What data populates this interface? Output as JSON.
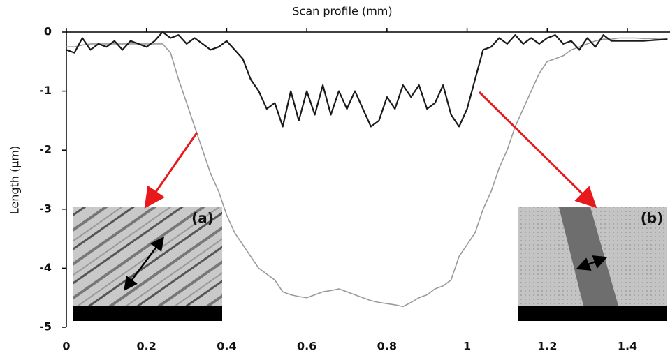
{
  "chart_data": {
    "type": "line",
    "x_label": "Scan profile  (mm)",
    "y_label": "Length  (µm)",
    "x": [
      0,
      0.02,
      0.04,
      0.06,
      0.08,
      0.1,
      0.12,
      0.14,
      0.16,
      0.18,
      0.2,
      0.22,
      0.24,
      0.26,
      0.28,
      0.3,
      0.32,
      0.34,
      0.36,
      0.38,
      0.4,
      0.42,
      0.44,
      0.46,
      0.48,
      0.5,
      0.52,
      0.54,
      0.56,
      0.58,
      0.6,
      0.62,
      0.64,
      0.66,
      0.68,
      0.7,
      0.72,
      0.74,
      0.76,
      0.78,
      0.8,
      0.82,
      0.84,
      0.86,
      0.88,
      0.9,
      0.92,
      0.94,
      0.96,
      0.98,
      1,
      1.02,
      1.04,
      1.06,
      1.08,
      1.1,
      1.12,
      1.14,
      1.16,
      1.18,
      1.2,
      1.22,
      1.24,
      1.26,
      1.28,
      1.3,
      1.32,
      1.34,
      1.36,
      1.38,
      1.4,
      1.42,
      1.44,
      1.46,
      1.48,
      1.5
    ],
    "series": [
      {
        "color": "#1a1a1a",
        "values": [
          -0.3,
          -0.35,
          -0.1,
          -0.3,
          -0.2,
          -0.25,
          -0.15,
          -0.3,
          -0.15,
          -0.2,
          -0.25,
          -0.15,
          0,
          -0.1,
          -0.05,
          -0.2,
          -0.1,
          -0.2,
          -0.3,
          -0.25,
          -0.15,
          -0.3,
          -0.45,
          -0.8,
          -1.0,
          -1.3,
          -1.2,
          -1.6,
          -1.0,
          -1.5,
          -1.0,
          -1.4,
          -0.9,
          -1.4,
          -1.0,
          -1.3,
          -1.0,
          -1.3,
          -1.6,
          -1.5,
          -1.1,
          -1.3,
          -0.9,
          -1.1,
          -0.9,
          -1.3,
          -1.2,
          -0.9,
          -1.4,
          -1.6,
          -1.3,
          -0.8,
          -0.3,
          -0.25,
          -0.1,
          -0.2,
          -0.05,
          -0.2,
          -0.1,
          -0.2,
          -0.1,
          -0.05,
          -0.2,
          -0.15,
          -0.3,
          -0.1,
          -0.25,
          -0.05,
          -0.15,
          -0.15,
          -0.15,
          -0.15,
          -0.15,
          -0.14,
          -0.13,
          -0.12
        ]
      },
      {
        "color": "#9a9a9a",
        "values": [
          -0.25,
          -0.25,
          -0.22,
          -0.2,
          -0.2,
          -0.2,
          -0.2,
          -0.2,
          -0.2,
          -0.2,
          -0.2,
          -0.2,
          -0.2,
          -0.35,
          -0.8,
          -1.2,
          -1.6,
          -2.0,
          -2.4,
          -2.7,
          -3.1,
          -3.4,
          -3.6,
          -3.8,
          -4.0,
          -4.1,
          -4.2,
          -4.4,
          -4.45,
          -4.48,
          -4.5,
          -4.45,
          -4.4,
          -4.38,
          -4.35,
          -4.4,
          -4.45,
          -4.5,
          -4.55,
          -4.58,
          -4.6,
          -4.62,
          -4.65,
          -4.58,
          -4.5,
          -4.45,
          -4.35,
          -4.3,
          -4.2,
          -3.8,
          -3.6,
          -3.4,
          -3.0,
          -2.7,
          -2.3,
          -2.0,
          -1.6,
          -1.3,
          -1.0,
          -0.7,
          -0.5,
          -0.45,
          -0.4,
          -0.3,
          -0.25,
          -0.2,
          -0.15,
          -0.12,
          -0.12,
          -0.1,
          -0.1,
          -0.1,
          -0.11,
          -0.11,
          -0.12,
          -0.12
        ]
      }
    ],
    "xlim": [
      0,
      1.5
    ],
    "xticks": [
      0,
      0.2,
      0.4,
      0.6,
      0.8,
      1,
      1.2,
      1.4
    ],
    "ylim": [
      -5,
      0
    ],
    "yticks": [
      0,
      -1,
      -2,
      -3,
      -4,
      -5
    ],
    "annotations": [
      "(a)",
      "(b)"
    ]
  }
}
